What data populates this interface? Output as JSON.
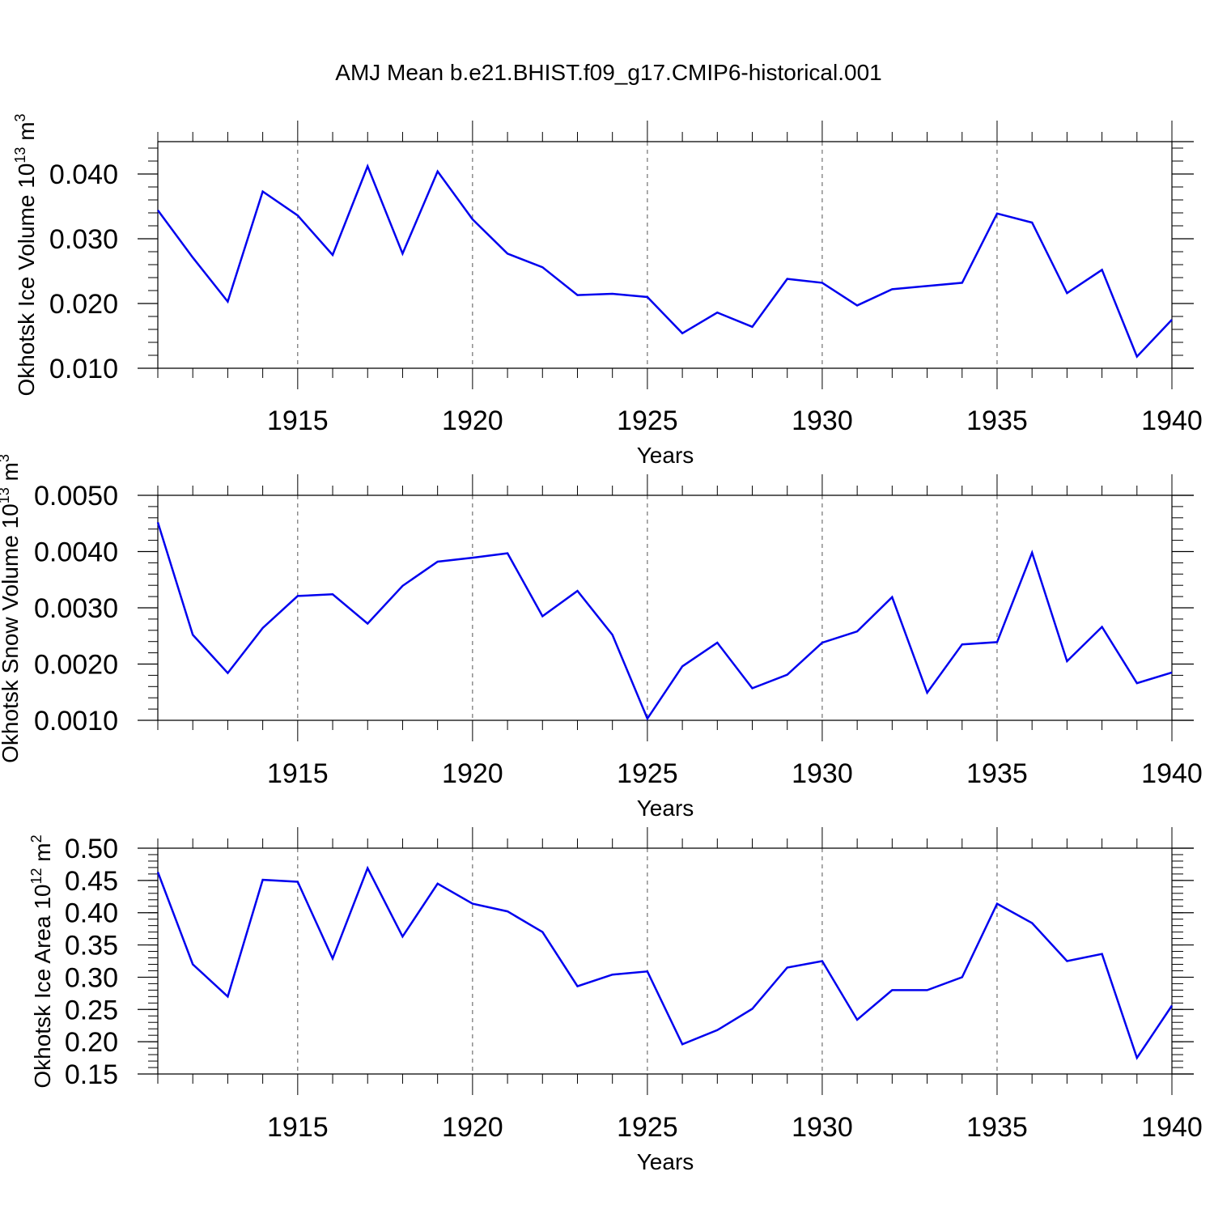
{
  "title": "AMJ Mean b.e21.BHIST.f09_g17.CMIP6-historical.001",
  "chart_data": [
    {
      "type": "line",
      "title": "AMJ Mean b.e21.BHIST.f09_g17.CMIP6-historical.001",
      "xlabel": "Years",
      "ylabel": "Okhotsk Ice Volume 10",
      "ylabel_exp": "13",
      "ylabel_unit": " m",
      "ylabel_unit_exp": "3",
      "xlim": [
        1911,
        1940
      ],
      "ylim": [
        0.01,
        0.045
      ],
      "x_ticks": [
        1915,
        1920,
        1925,
        1930,
        1935,
        1940
      ],
      "x_tick_labels": [
        "1915",
        "1920",
        "1925",
        "1930",
        "1935",
        "1940"
      ],
      "y_ticks": [
        0.01,
        0.02,
        0.03,
        0.04
      ],
      "y_tick_labels": [
        "0.010",
        "0.020",
        "0.030",
        "0.040"
      ],
      "y_minor_step": 0.002,
      "grid": "vertical dashed at major x ticks",
      "line_color": "#0000ee",
      "x": [
        1911,
        1912,
        1913,
        1914,
        1915,
        1916,
        1917,
        1918,
        1919,
        1920,
        1921,
        1922,
        1923,
        1924,
        1925,
        1926,
        1927,
        1928,
        1929,
        1930,
        1931,
        1932,
        1933,
        1934,
        1935,
        1936,
        1937,
        1938,
        1939,
        1940
      ],
      "series": [
        {
          "name": "Okhotsk Ice Volume",
          "values": [
            0.0344,
            0.0271,
            0.0203,
            0.0373,
            0.0336,
            0.0275,
            0.0412,
            0.0277,
            0.0404,
            0.033,
            0.0277,
            0.0256,
            0.0213,
            0.0215,
            0.021,
            0.0154,
            0.0186,
            0.0164,
            0.0238,
            0.0232,
            0.0197,
            0.0222,
            0.0227,
            0.0232,
            0.0339,
            0.0325,
            0.0216,
            0.0252,
            0.0118,
            0.0175
          ]
        }
      ]
    },
    {
      "type": "line",
      "xlabel": "Years",
      "ylabel": "Okhotsk Snow Volume 10",
      "ylabel_exp": "13",
      "ylabel_unit": " m",
      "ylabel_unit_exp": "3",
      "xlim": [
        1911,
        1940
      ],
      "ylim": [
        0.001,
        0.005
      ],
      "x_ticks": [
        1915,
        1920,
        1925,
        1930,
        1935,
        1940
      ],
      "x_tick_labels": [
        "1915",
        "1920",
        "1925",
        "1930",
        "1935",
        "1940"
      ],
      "y_ticks": [
        0.001,
        0.002,
        0.003,
        0.004,
        0.005
      ],
      "y_tick_labels": [
        "0.0010",
        "0.0020",
        "0.0030",
        "0.0040",
        "0.0050"
      ],
      "y_minor_step": 0.0002,
      "grid": "vertical dashed at major x ticks",
      "line_color": "#0000ee",
      "x": [
        1911,
        1912,
        1913,
        1914,
        1915,
        1916,
        1917,
        1918,
        1919,
        1920,
        1921,
        1922,
        1923,
        1924,
        1925,
        1926,
        1927,
        1928,
        1929,
        1930,
        1931,
        1932,
        1933,
        1934,
        1935,
        1936,
        1937,
        1938,
        1939,
        1940
      ],
      "series": [
        {
          "name": "Okhotsk Snow Volume",
          "values": [
            0.00452,
            0.00252,
            0.00184,
            0.00264,
            0.00321,
            0.00324,
            0.00272,
            0.00339,
            0.00382,
            0.00389,
            0.00397,
            0.00285,
            0.0033,
            0.00252,
            0.00103,
            0.00196,
            0.00238,
            0.00157,
            0.00181,
            0.00238,
            0.00258,
            0.00319,
            0.00149,
            0.00235,
            0.00239,
            0.00398,
            0.00205,
            0.00266,
            0.00166,
            0.00185
          ]
        }
      ]
    },
    {
      "type": "line",
      "xlabel": "Years",
      "ylabel": "Okhotsk Ice Area 10",
      "ylabel_exp": "12",
      "ylabel_unit": " m",
      "ylabel_unit_exp": "2",
      "xlim": [
        1911,
        1940
      ],
      "ylim": [
        0.15,
        0.5
      ],
      "x_ticks": [
        1915,
        1920,
        1925,
        1930,
        1935,
        1940
      ],
      "x_tick_labels": [
        "1915",
        "1920",
        "1925",
        "1930",
        "1935",
        "1940"
      ],
      "y_ticks": [
        0.15,
        0.2,
        0.25,
        0.3,
        0.35,
        0.4,
        0.45,
        0.5
      ],
      "y_tick_labels": [
        "0.15",
        "0.20",
        "0.25",
        "0.30",
        "0.35",
        "0.40",
        "0.45",
        "0.50"
      ],
      "y_minor_step": 0.01,
      "grid": "vertical dashed at major x ticks",
      "line_color": "#0000ee",
      "x": [
        1911,
        1912,
        1913,
        1914,
        1915,
        1916,
        1917,
        1918,
        1919,
        1920,
        1921,
        1922,
        1923,
        1924,
        1925,
        1926,
        1927,
        1928,
        1929,
        1930,
        1931,
        1932,
        1933,
        1934,
        1935,
        1936,
        1937,
        1938,
        1939,
        1940
      ],
      "series": [
        {
          "name": "Okhotsk Ice Area",
          "values": [
            0.463,
            0.32,
            0.27,
            0.451,
            0.448,
            0.329,
            0.469,
            0.363,
            0.445,
            0.414,
            0.402,
            0.37,
            0.286,
            0.304,
            0.309,
            0.196,
            0.218,
            0.251,
            0.315,
            0.325,
            0.234,
            0.28,
            0.28,
            0.3,
            0.414,
            0.384,
            0.325,
            0.336,
            0.175,
            0.256
          ]
        }
      ]
    }
  ]
}
